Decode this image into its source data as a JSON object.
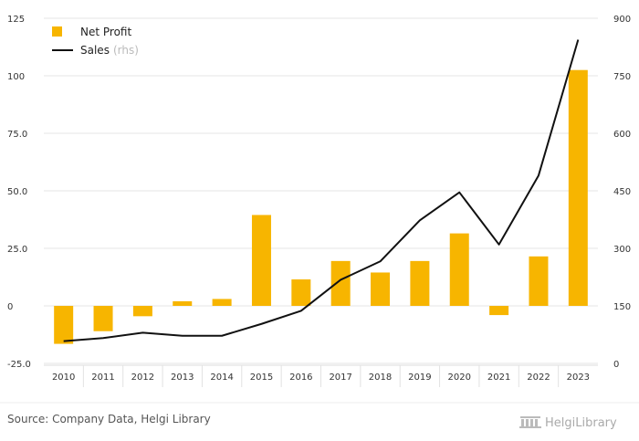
{
  "chart_data": {
    "type": "bar",
    "categories": [
      "2010",
      "2011",
      "2012",
      "2013",
      "2014",
      "2015",
      "2016",
      "2017",
      "2018",
      "2019",
      "2020",
      "2021",
      "2022",
      "2023"
    ],
    "series": [
      {
        "name": "Net Profit",
        "type": "bar",
        "axis": "left",
        "color": "#F7B500",
        "values": [
          -16.5,
          -11,
          -4.5,
          2,
          3,
          39.5,
          11.5,
          19.5,
          14.5,
          19.5,
          31.5,
          -4,
          21.5,
          102.5
        ]
      },
      {
        "name": "Sales",
        "name_suffix": "(rhs)",
        "type": "line",
        "axis": "right",
        "color": "#111111",
        "values": [
          58,
          66,
          80,
          72,
          72,
          103,
          137,
          218,
          266,
          373,
          446,
          310,
          490,
          844
        ]
      }
    ],
    "y_left": {
      "min": -25,
      "max": 125,
      "ticks": [
        "-25.0",
        "0",
        "25.0",
        "50.0",
        "75.0",
        "100",
        "125"
      ]
    },
    "y_right": {
      "min": 0,
      "max": 900,
      "ticks": [
        "0",
        "150",
        "300",
        "450",
        "600",
        "750",
        "900"
      ]
    },
    "grid": true,
    "legend": "top-left"
  },
  "footer": {
    "source": "Source: Company Data, Helgi Library",
    "brand": "HelgiLibrary"
  }
}
